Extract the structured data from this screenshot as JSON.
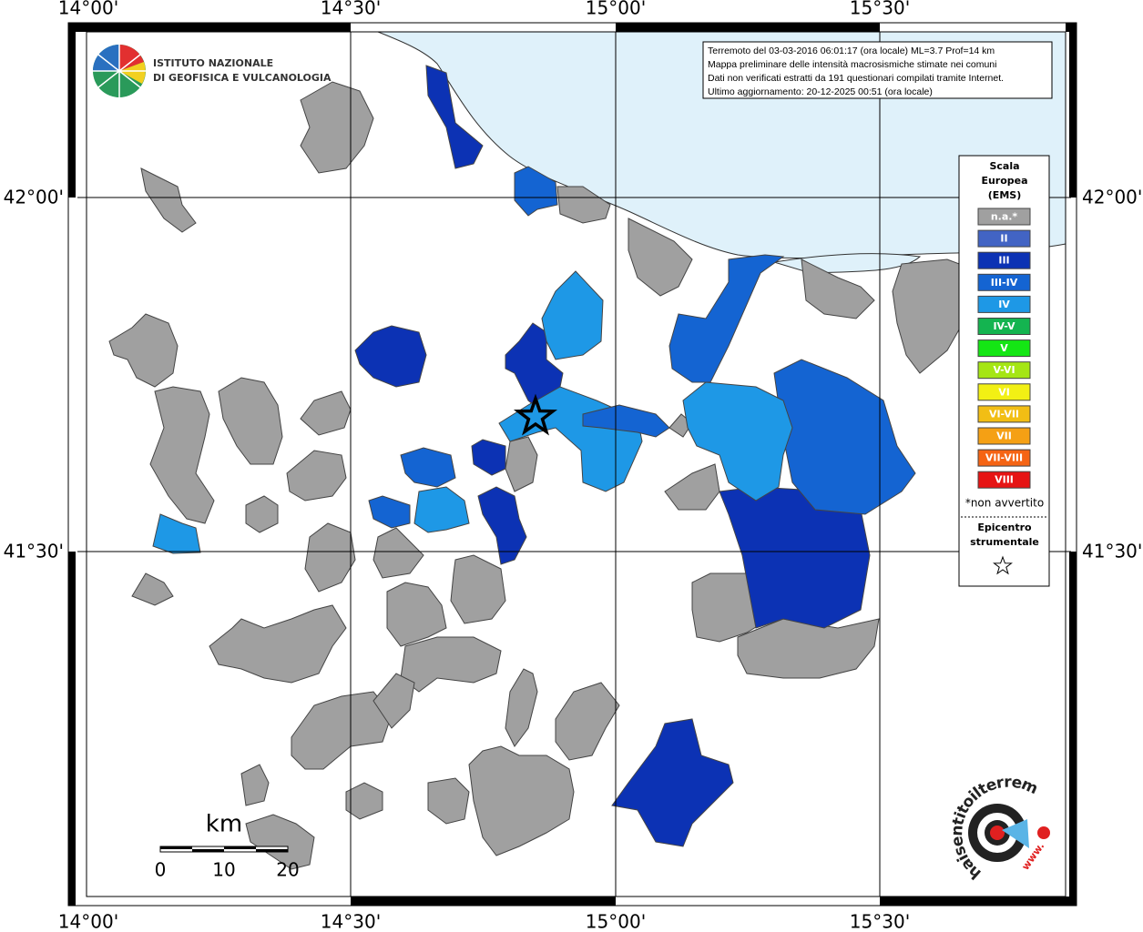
{
  "axes": {
    "top_labels": [
      "14°00'",
      "14°30'",
      "15°00'",
      "15°30'"
    ],
    "bottom_labels": [
      "14°00'",
      "14°30'",
      "15°00'",
      "15°30'"
    ],
    "left_labels": [
      "42°00'",
      "41°30'"
    ],
    "right_labels": [
      "42°00'",
      "41°30'"
    ]
  },
  "logo": {
    "line1": "ISTITUTO NAZIONALE",
    "line2": "DI GEOFISICA E VULCANOLOGIA"
  },
  "info_box": {
    "lines": [
      "Terremoto del 03-03-2016 06:01:17 (ora locale) ML=3.7 Prof=14 km",
      "Mappa preliminare delle intensità macrosismiche stimate nei comuni",
      "Dati non verificati estratti da 191 questionari compilati tramite Internet.",
      "Ultimo aggiornamento: 20-12-2025 00:51 (ora locale)"
    ]
  },
  "legend": {
    "title": [
      "Scala",
      "Europea",
      "(EMS)"
    ],
    "items": [
      {
        "label": "n.a.*",
        "color": "#a0a0a0"
      },
      {
        "label": "II",
        "color": "#4264c4"
      },
      {
        "label": "III",
        "color": "#0c32b4"
      },
      {
        "label": "III-IV",
        "color": "#1464d2"
      },
      {
        "label": "IV",
        "color": "#1e98e6"
      },
      {
        "label": "IV-V",
        "color": "#14b450"
      },
      {
        "label": "V",
        "color": "#14e614"
      },
      {
        "label": "V-VI",
        "color": "#a5e614"
      },
      {
        "label": "VI",
        "color": "#f2f014"
      },
      {
        "label": "VI-VII",
        "color": "#f2be14"
      },
      {
        "label": "VII",
        "color": "#f5a014"
      },
      {
        "label": "VII-VIII",
        "color": "#f56414"
      },
      {
        "label": "VIII",
        "color": "#e61414"
      }
    ],
    "note": "*non avvertito",
    "epicenter_title": [
      "Epicentro",
      "strumentale"
    ]
  },
  "scale_bar": {
    "unit": "km",
    "labels": [
      "0",
      "10",
      "20"
    ]
  },
  "badge": {
    "site": "haisentitoilterremoto.it",
    "www": "www."
  }
}
